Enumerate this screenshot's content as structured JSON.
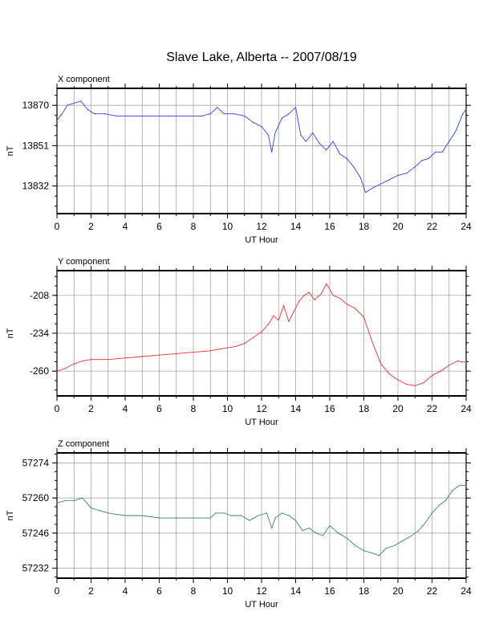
{
  "title": "Slave Lake, Alberta -- 2007/08/19",
  "chart_data": [
    {
      "type": "line",
      "title": "X component",
      "xlabel": "UT Hour",
      "ylabel": "nT",
      "xlim": [
        0,
        24
      ],
      "ylim": [
        13819,
        13878
      ],
      "xticks": [
        0,
        2,
        4,
        6,
        8,
        10,
        12,
        14,
        16,
        18,
        20,
        22,
        24
      ],
      "yticks": [
        13870,
        13851,
        13832
      ],
      "color": "#3a3ae8",
      "series": [
        {
          "x": [
            0,
            0.3,
            0.6,
            1.0,
            1.4,
            1.8,
            2.2,
            2.8,
            3.5,
            4.5,
            5.5,
            6.5,
            7.5,
            8.5,
            9.0,
            9.4,
            9.8,
            10.4,
            11.0,
            11.5,
            12.0,
            12.4,
            12.6,
            12.8,
            13.2,
            13.6,
            14.0,
            14.3,
            14.6,
            15.0,
            15.4,
            15.8,
            16.2,
            16.6,
            17.0,
            17.4,
            17.8,
            18.1,
            18.5,
            19.0,
            19.5,
            20.0,
            20.5,
            21.0,
            21.4,
            21.8,
            22.2,
            22.6,
            23.0,
            23.4,
            23.8,
            24.0
          ],
          "y": [
            13863,
            13866,
            13870,
            13871,
            13872,
            13868,
            13866,
            13866,
            13865,
            13865,
            13865,
            13865,
            13865,
            13865,
            13866,
            13869,
            13866,
            13866,
            13865,
            13862,
            13860,
            13856,
            13848,
            13857,
            13864,
            13866,
            13869,
            13856,
            13853,
            13857,
            13852,
            13849,
            13853,
            13847,
            13845,
            13841,
            13836,
            13829,
            13831,
            13833,
            13835,
            13837,
            13838,
            13841,
            13844,
            13845,
            13848,
            13848,
            13853,
            13858,
            13866,
            13868
          ]
        }
      ]
    },
    {
      "type": "line",
      "title": "Y component",
      "xlabel": "UT Hour",
      "ylabel": "nT",
      "xlim": [
        0,
        24
      ],
      "ylim": [
        -277,
        -191
      ],
      "xticks": [
        0,
        2,
        4,
        6,
        8,
        10,
        12,
        14,
        16,
        18,
        20,
        22,
        24
      ],
      "yticks": [
        -208,
        -234,
        -260
      ],
      "color": "#e83232",
      "series": [
        {
          "x": [
            0,
            0.5,
            1.0,
            1.5,
            2.0,
            3.0,
            4.0,
            5.0,
            6.0,
            7.0,
            8.0,
            9.0,
            10.0,
            10.5,
            11.0,
            11.5,
            12.0,
            12.4,
            12.7,
            13.0,
            13.3,
            13.6,
            13.9,
            14.2,
            14.5,
            14.8,
            15.1,
            15.5,
            15.8,
            16.2,
            16.6,
            17.0,
            17.5,
            18.0,
            18.5,
            19.0,
            19.5,
            20.0,
            20.5,
            21.0,
            21.5,
            22.0,
            22.5,
            23.0,
            23.5,
            24.0
          ],
          "y": [
            -260,
            -258,
            -255,
            -253,
            -252,
            -252,
            -251,
            -250,
            -249,
            -248,
            -247,
            -246,
            -244,
            -243,
            -241,
            -237,
            -233,
            -228,
            -222,
            -225,
            -215,
            -226,
            -219,
            -212,
            -208,
            -206,
            -211,
            -207,
            -200,
            -208,
            -210,
            -214,
            -217,
            -223,
            -240,
            -255,
            -262,
            -266,
            -269,
            -270,
            -268,
            -263,
            -260,
            -256,
            -253,
            -254
          ]
        }
      ]
    },
    {
      "type": "line",
      "title": "Z component",
      "xlabel": "UT Hour",
      "ylabel": "nT",
      "xlim": [
        0,
        24
      ],
      "ylim": [
        57228,
        57278
      ],
      "xticks": [
        0,
        2,
        4,
        6,
        8,
        10,
        12,
        14,
        16,
        18,
        20,
        22,
        24
      ],
      "yticks": [
        57274,
        57260,
        57246,
        57232
      ],
      "color": "#3a8a60",
      "series": [
        {
          "x": [
            0,
            0.5,
            1.0,
            1.5,
            2.0,
            2.5,
            3.0,
            4.0,
            5.0,
            6.0,
            7.0,
            8.0,
            9.0,
            9.3,
            9.8,
            10.2,
            10.8,
            11.3,
            11.8,
            12.3,
            12.6,
            12.8,
            13.2,
            13.6,
            14.0,
            14.4,
            14.8,
            15.2,
            15.6,
            16.0,
            16.5,
            17.0,
            17.5,
            18.0,
            18.5,
            18.9,
            19.3,
            19.8,
            20.3,
            20.8,
            21.2,
            21.6,
            22.0,
            22.4,
            22.8,
            23.2,
            23.6,
            24.0
          ],
          "y": [
            57258,
            57259,
            57259,
            57260,
            57256,
            57255,
            57254,
            57253,
            57253,
            57252,
            57252,
            57252,
            57252,
            57254,
            57254,
            57253,
            57253,
            57251,
            57253,
            57254,
            57248,
            57252,
            57254,
            57253,
            57251,
            57247,
            57248,
            57246,
            57245,
            57249,
            57246,
            57244,
            57241,
            57239,
            57238,
            57237,
            57240,
            57241,
            57243,
            57245,
            57247,
            57250,
            57254,
            57257,
            57259,
            57263,
            57265,
            57265
          ]
        }
      ]
    }
  ]
}
